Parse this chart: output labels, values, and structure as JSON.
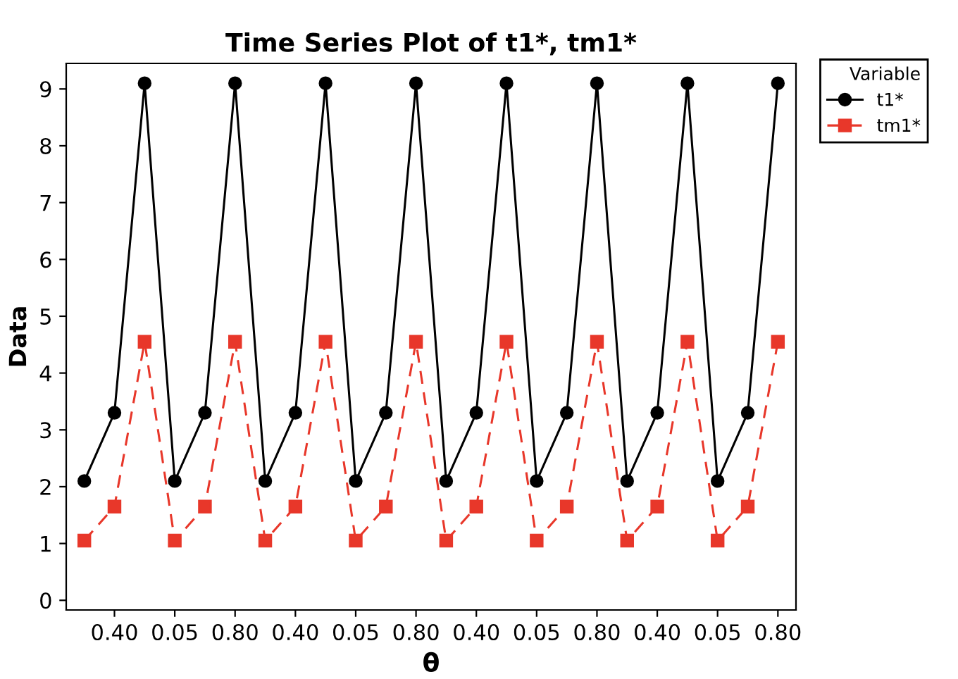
{
  "chart_data": {
    "type": "line",
    "title": "Time Series Plot of t1*, tm1*",
    "xlabel": "θ",
    "ylabel": "Data",
    "legend_title": "Variable",
    "categories": [
      null,
      "0.40",
      null,
      "0.05",
      null,
      "0.80",
      null,
      "0.40",
      null,
      "0.05",
      null,
      "0.80",
      null,
      "0.40",
      null,
      "0.05",
      null,
      "0.80",
      null,
      "0.40",
      null,
      "0.05",
      null,
      "0.80"
    ],
    "series": [
      {
        "name": "t1*",
        "color": "#000000",
        "marker": "circle",
        "line_style": "solid",
        "values": [
          2.1,
          3.3,
          9.1,
          2.1,
          3.3,
          9.1,
          2.1,
          3.3,
          9.1,
          2.1,
          3.3,
          9.1,
          2.1,
          3.3,
          9.1,
          2.1,
          3.3,
          9.1,
          2.1,
          3.3,
          9.1,
          2.1,
          3.3,
          9.1
        ]
      },
      {
        "name": "tm1*",
        "color": "#e8372a",
        "marker": "square",
        "line_style": "dashed",
        "values": [
          1.05,
          1.65,
          4.55,
          1.05,
          1.65,
          4.55,
          1.05,
          1.65,
          4.55,
          1.05,
          1.65,
          4.55,
          1.05,
          1.65,
          4.55,
          1.05,
          1.65,
          4.55,
          1.05,
          1.65,
          4.55,
          1.05,
          1.65,
          4.55
        ]
      }
    ],
    "ylim": [
      -0.17,
      9.45
    ],
    "yticks": [
      0,
      1,
      2,
      3,
      4,
      5,
      6,
      7,
      8,
      9
    ],
    "grid": false,
    "legend": "top right"
  }
}
